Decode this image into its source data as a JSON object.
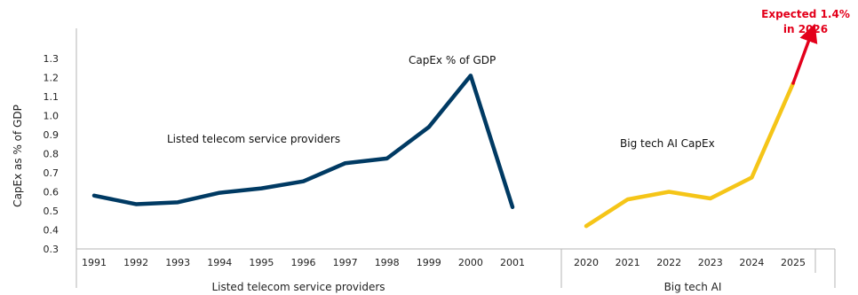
{
  "chart_data": {
    "type": "line",
    "ylabel": "CapEx as % of GDP",
    "ylim": [
      0.3,
      1.3
    ],
    "yticks": [
      "0.3",
      "0.4",
      "0.5",
      "0.6",
      "0.7",
      "0.8",
      "0.9",
      "1.0",
      "1.1",
      "1.2",
      "1.3"
    ],
    "grid": false,
    "groups": [
      {
        "label": "Listed telecom service providers",
        "categories": [
          "1991",
          "1992",
          "1993",
          "1994",
          "1995",
          "1996",
          "1997",
          "1998",
          "1999",
          "2000",
          "2001"
        ],
        "series_label": "Listed telecom service providers",
        "values": [
          0.58,
          0.535,
          0.545,
          0.595,
          0.618,
          0.655,
          0.75,
          0.775,
          0.94,
          1.21,
          0.52
        ],
        "color": "#003a63"
      },
      {
        "label": "Big tech AI",
        "categories": [
          "2020",
          "2021",
          "2022",
          "2023",
          "2024",
          "2025"
        ],
        "series_label": "Big tech AI CapEx",
        "values": [
          0.42,
          0.56,
          0.6,
          0.565,
          0.675,
          1.17
        ],
        "color": "#f5c518",
        "projection": {
          "to": "2026",
          "value": 1.4,
          "color": "#e3001b",
          "label_line1": "Expected 1.4%",
          "label_line2": "in 2026"
        }
      }
    ],
    "annotations": {
      "peak_label": "CapEx % of GDP"
    }
  }
}
